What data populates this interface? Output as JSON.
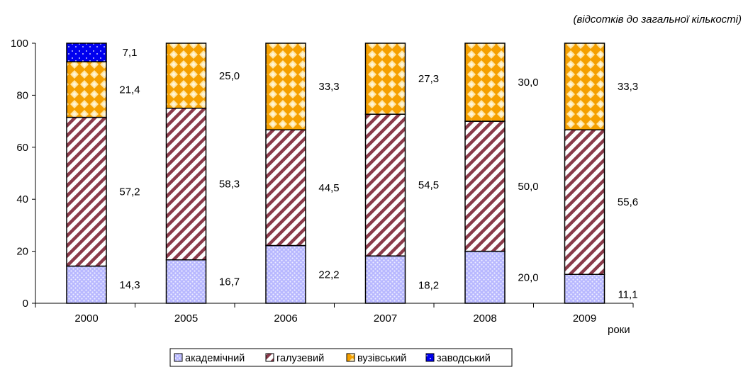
{
  "chart_data": {
    "type": "bar",
    "stacked": true,
    "title": "",
    "subtitle": "(відсотків до загальної кількості)",
    "xlabel": "роки",
    "ylabel": "",
    "ylim": [
      0,
      100
    ],
    "yticks": [
      0,
      20,
      40,
      60,
      80,
      100
    ],
    "categories": [
      "2000",
      "2005",
      "2006",
      "2007",
      "2008",
      "2009"
    ],
    "series": [
      {
        "name": "академічний",
        "color": "#b8b8ff",
        "pattern": "dots",
        "values": [
          14.3,
          16.7,
          22.2,
          18.2,
          20.0,
          11.1
        ],
        "labels": [
          "14,3",
          "16,7",
          "22,2",
          "18,2",
          "20,0",
          "11,1"
        ]
      },
      {
        "name": "галузевий",
        "color": "#8a3a4a",
        "pattern": "diagonal-stripes",
        "values": [
          57.2,
          58.3,
          44.5,
          54.5,
          50.0,
          55.6
        ],
        "labels": [
          "57,2",
          "58,3",
          "44,5",
          "54,5",
          "50,0",
          "55,6"
        ]
      },
      {
        "name": "вузівський",
        "color": "#f5a000",
        "pattern": "diamonds",
        "values": [
          21.4,
          25.0,
          33.3,
          27.3,
          30.0,
          33.3
        ],
        "labels": [
          "21,4",
          "25,0",
          "33,3",
          "27,3",
          "30,0",
          "33,3"
        ]
      },
      {
        "name": "заводський",
        "color": "#0000ee",
        "pattern": "sparkle",
        "values": [
          7.1,
          0,
          0,
          0,
          0,
          0
        ],
        "labels": [
          "7,1",
          "",
          "",
          "",
          "",
          ""
        ]
      }
    ],
    "legend": "bottom-center",
    "grid": false
  }
}
